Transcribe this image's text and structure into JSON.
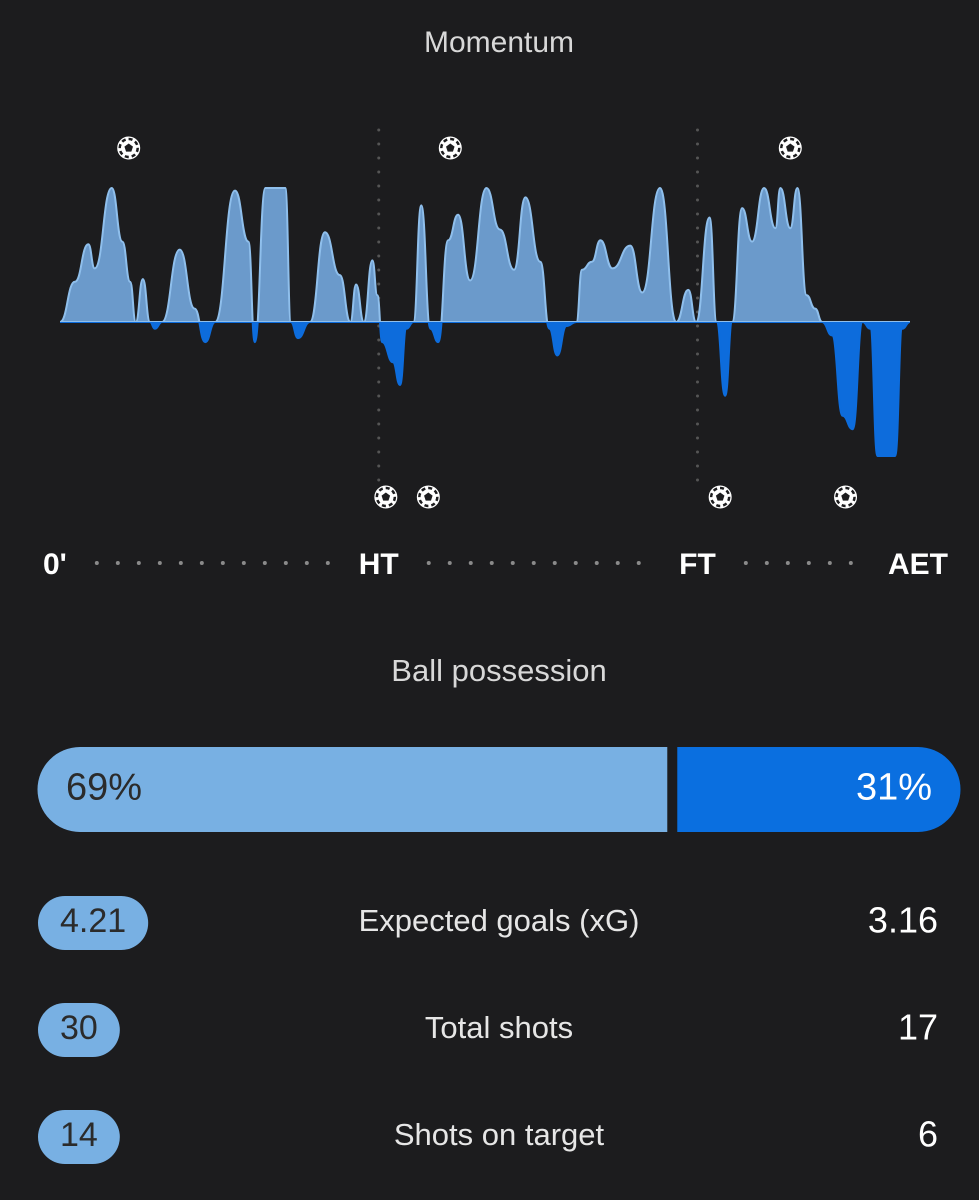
{
  "chart_data": {
    "type": "area",
    "title": "Momentum",
    "x": [
      0,
      2.1,
      4,
      4.9,
      7.3,
      8.8,
      9.9,
      10.7,
      11.7,
      12.7,
      13.4,
      14.4,
      16.9,
      19,
      20.5,
      21.9,
      24.7,
      26.6,
      27.5,
      29,
      31.8,
      32.6,
      33.6,
      35.3,
      37.4,
      39.5,
      41,
      41.8,
      42.9,
      44.1,
      44.8,
      45.5,
      47,
      48,
      48.9,
      49.9,
      51,
      52.3,
      53.4,
      54.8,
      56.2,
      57.9,
      60.2,
      62.1,
      64.1,
      65.7,
      67.8,
      69.1,
      70.2,
      71.5,
      72.9,
      73.7,
      75.1,
      76.3,
      78,
      80.5,
      82.2,
      84.7,
      87,
      88.7,
      89.8,
      91.7,
      92.7,
      93.9,
      94.9,
      96.3,
      97.7,
      99.4,
      101,
      101.7,
      103.1,
      104.1,
      105.4,
      106.6,
      107.6,
      109,
      110.5,
      111.9,
      113.3,
      114.4,
      115.4,
      117.9,
      118.9,
      120
    ],
    "values": [
      0,
      30,
      58,
      40,
      100,
      60,
      30,
      0,
      32,
      0,
      -5,
      0,
      54,
      10,
      -15,
      0,
      98,
      60,
      -15,
      100,
      100,
      0,
      -12,
      0,
      67,
      35,
      0,
      28,
      0,
      46,
      20,
      -15,
      -30,
      -47,
      -5,
      0,
      87,
      -5,
      -15,
      61,
      80,
      31,
      100,
      69,
      39,
      93,
      45,
      -5,
      -25,
      -3,
      0,
      39,
      45,
      61,
      40,
      57,
      22,
      100,
      0,
      24,
      0,
      78,
      0,
      -55,
      0,
      85,
      60,
      100,
      70,
      100,
      70,
      100,
      20,
      10,
      0,
      -10,
      -70,
      -80,
      0,
      -5,
      -100,
      -100,
      -5,
      0
    ],
    "xlim": [
      0,
      120
    ],
    "ylim": [
      -100,
      100
    ],
    "xticks": [
      {
        "value": 0,
        "label": "0'"
      },
      {
        "value": 45,
        "label": "HT"
      },
      {
        "value": 90,
        "label": "FT"
      },
      {
        "value": 120,
        "label": "AET"
      }
    ],
    "colors": {
      "positive": "#6b9acb",
      "negative": "#0d6cdc",
      "stroke": "#8fbfec"
    },
    "goals_top": [
      9.7,
      55.1,
      103.1
    ],
    "goals_bottom": [
      46,
      52,
      93.2,
      110.9
    ]
  },
  "possession": {
    "title": "Ball possession",
    "values": [
      69,
      31
    ],
    "value_labels": [
      "69%",
      "31%"
    ],
    "colors": [
      "#78b0e3",
      "#0a6fe0"
    ]
  },
  "stats": [
    {
      "name": "Expected goals (xG)",
      "home": 4.21,
      "away": 3.16
    },
    {
      "name": "Total shots",
      "home": 30,
      "away": 17
    },
    {
      "name": "Shots on target",
      "home": 14,
      "away": 6
    }
  ]
}
